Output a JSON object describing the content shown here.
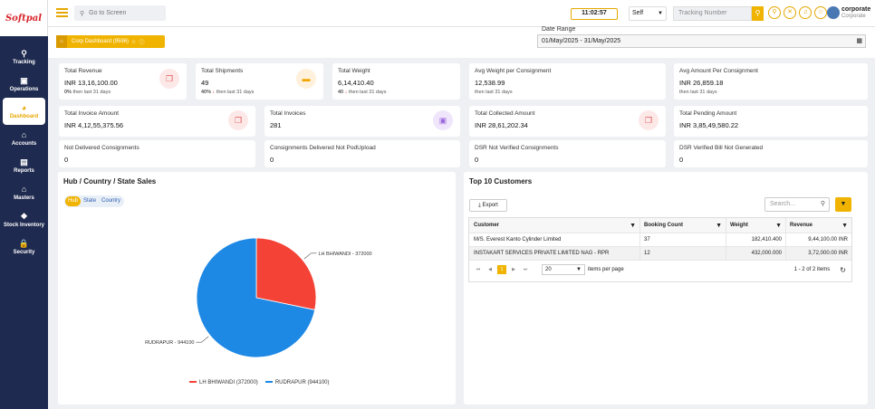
{
  "app": {
    "logo_text": "Softpal"
  },
  "sidebar": {
    "items": [
      {
        "label": "Tracking",
        "icon": "location-pin-icon",
        "glyph": "⚲"
      },
      {
        "label": "Operations",
        "icon": "id-card-icon",
        "glyph": "▣"
      },
      {
        "label": "Dashboard",
        "icon": "dashboard-icon",
        "glyph": "◕"
      },
      {
        "label": "Accounts",
        "icon": "bank-icon",
        "glyph": "⌂"
      },
      {
        "label": "Reports",
        "icon": "file-icon",
        "glyph": "▤"
      },
      {
        "label": "Masters",
        "icon": "graduation-cap-icon",
        "glyph": "⌂"
      },
      {
        "label": "Stock Inventory",
        "icon": "cubes-icon",
        "glyph": "❖"
      },
      {
        "label": "Security",
        "icon": "lock-icon",
        "glyph": "🔒"
      }
    ]
  },
  "topbar": {
    "search_placeholder": "Go to Screen",
    "clock": "11:02:57",
    "mode": "Self",
    "tracking_placeholder": "Tracking Number",
    "user_name": "corporate",
    "user_role": "Corporate"
  },
  "breadcrumb": {
    "label": "Corp Dashboard (9596)"
  },
  "date_range": {
    "label": "Date Range",
    "value": "01/May/2025 - 31/May/2025"
  },
  "cards": {
    "total_revenue": {
      "title": "Total Revenue",
      "value": "INR  13,16,100.00",
      "pct": "0%",
      "sub": "then last 31 days"
    },
    "total_shipments": {
      "title": "Total Shipments",
      "value": "49",
      "pct": "40%",
      "sub": "then last 31 days"
    },
    "total_weight": {
      "title": "Total Weight",
      "value": "6,14,410.40",
      "pct": "40",
      "sub": "then last 31 days"
    },
    "avg_weight": {
      "title": "Avg Weight per Consignment",
      "value": "12,538.99",
      "sub": "then last 31 days"
    },
    "avg_amount": {
      "title": "Avg Amount Per Consignment",
      "value": "INR  26,859.18",
      "sub": "then last 31 days"
    },
    "total_invoice_amount": {
      "title": "Total Invoice Amount",
      "value": "INR  4,12,55,375.56"
    },
    "total_invoices": {
      "title": "Total Invoices",
      "value": "281"
    },
    "total_collected": {
      "title": "Total Collected Amount",
      "value": "INR  28,61,202.34"
    },
    "total_pending": {
      "title": "Total Pending Amount",
      "value": "INR  3,85,49,580.22"
    },
    "not_delivered": {
      "title": "Not Delivered Consignments",
      "value": "0"
    },
    "delivered_not_pod": {
      "title": "Consignments Delivered Not PodUpload",
      "value": "0"
    },
    "dsr_not_verified": {
      "title": "DSR Not Verified Consignments",
      "value": "0"
    },
    "dsr_verified_bill": {
      "title": "DSR Verified Bill Not Generated",
      "value": "0"
    }
  },
  "sales_panel": {
    "title": "Hub / Country / State Sales",
    "tabs": [
      "Hub",
      "State",
      "Country"
    ],
    "colors": {
      "lh_bhiwandi": "#f44336",
      "rudrapur": "#1e88e5"
    }
  },
  "chart_data": {
    "type": "pie",
    "title": "",
    "slices": [
      {
        "name": "LH BHIWANDI",
        "value": 372000,
        "label": "LH BHIWANDI - 372000",
        "legend": "LH BHIWANDI (372000)"
      },
      {
        "name": "RUDRAPUR",
        "value": 944100,
        "label": "RUDRAPUR - 944100",
        "legend": "RUDRAPUR (944100)"
      }
    ],
    "legend_position": "bottom"
  },
  "customers_panel": {
    "title": "Top 10 Customers",
    "export_label": "Export",
    "search_placeholder": "Search...",
    "columns": [
      "Customer",
      "Booking Count",
      "Weight",
      "Revenue"
    ],
    "rows": [
      [
        "M/S. Everest Kanto Cylinder Limited",
        "37",
        "182,410.400",
        "9,44,100.00 INR"
      ],
      [
        "INSTAKART SERVICES PRIVATE LIMITED NAG - RPR",
        "12",
        "432,000.000",
        "3,72,000.00 INR"
      ]
    ],
    "pager": {
      "current_page": "1",
      "page_size": "20",
      "per_page_label": "items per page",
      "summary": "1 - 2 of 2 items"
    }
  }
}
